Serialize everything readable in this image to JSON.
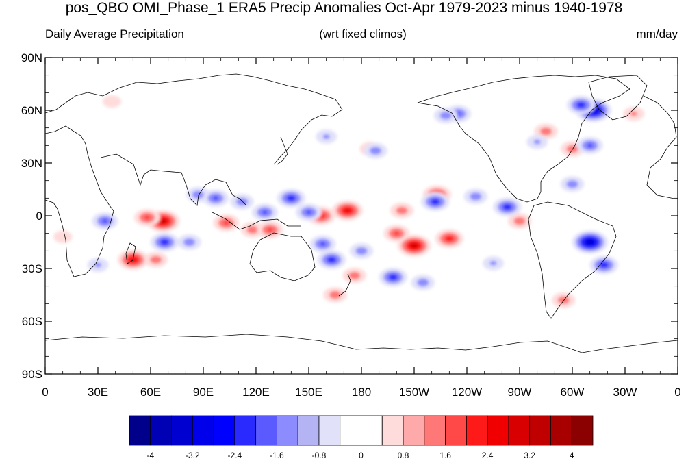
{
  "title": "pos_QBO OMI_Phase_1 ERA5 Precip Anomalies Oct-Apr 1979-2023 minus 1940-1978",
  "subtitle_left": "Daily Average Precipitation",
  "subtitle_center": "(wrt fixed climos)",
  "subtitle_right": "mm/day",
  "lat_labels": [
    "90N",
    "60N",
    "30N",
    "0",
    "30S",
    "60S",
    "90S"
  ],
  "lon_labels": [
    "0",
    "30E",
    "60E",
    "90E",
    "120E",
    "150E",
    "180",
    "150W",
    "120W",
    "90W",
    "60W",
    "30W",
    "0"
  ],
  "colorbar": {
    "colors": [
      "#00008b",
      "#0000b4",
      "#0000d0",
      "#0000ea",
      "#0000ff",
      "#2a2aff",
      "#5a5aff",
      "#8c8cff",
      "#b4b4f5",
      "#e1e1fa",
      "#ffffff",
      "#ffffff",
      "#ffdcdc",
      "#ffaaaa",
      "#ff7878",
      "#ff4848",
      "#ff1a1a",
      "#f00000",
      "#d80000",
      "#c00000",
      "#a80000",
      "#8b0000"
    ],
    "tick_labels": [
      "-4",
      "-3.2",
      "-2.4",
      "-1.6",
      "-0.8",
      "0",
      "0.8",
      "1.6",
      "2.4",
      "3.2",
      "4"
    ]
  },
  "chart_data": {
    "type": "heatmap",
    "title": "pos_QBO OMI_Phase_1 ERA5 Precip Anomalies Oct-Apr 1979-2023 minus 1940-1978",
    "units": "mm/day",
    "xlim": [
      0,
      360
    ],
    "ylim": [
      -90,
      90
    ],
    "color_range": [
      -4.4,
      4.4
    ],
    "color_interval": 0.4,
    "anomalies": [
      {
        "lon": 67,
        "lat": -3,
        "value": 3.2
      },
      {
        "lon": 58,
        "lat": -1,
        "value": 2.0
      },
      {
        "lon": 50,
        "lat": -25,
        "value": 2.8
      },
      {
        "lon": 63,
        "lat": -25,
        "value": 1.6
      },
      {
        "lon": 103,
        "lat": -4,
        "value": 2.0
      },
      {
        "lon": 118,
        "lat": -8,
        "value": 1.6
      },
      {
        "lon": 128,
        "lat": -8,
        "value": 2.0
      },
      {
        "lon": 172,
        "lat": 3,
        "value": 2.8
      },
      {
        "lon": 157,
        "lat": 0,
        "value": 2.4
      },
      {
        "lon": 210,
        "lat": -17,
        "value": 3.2
      },
      {
        "lon": 200,
        "lat": -10,
        "value": 2.0
      },
      {
        "lon": 230,
        "lat": -13,
        "value": 2.4
      },
      {
        "lon": 223,
        "lat": 12,
        "value": 2.4
      },
      {
        "lon": 203,
        "lat": 3,
        "value": 1.6
      },
      {
        "lon": 176,
        "lat": -34,
        "value": 1.6
      },
      {
        "lon": 165,
        "lat": -45,
        "value": 1.6
      },
      {
        "lon": 185,
        "lat": 38,
        "value": 1.2
      },
      {
        "lon": 285,
        "lat": 48,
        "value": 1.6
      },
      {
        "lon": 300,
        "lat": 38,
        "value": 1.6
      },
      {
        "lon": 335,
        "lat": 58,
        "value": 1.2
      },
      {
        "lon": 295,
        "lat": -48,
        "value": 1.6
      },
      {
        "lon": 270,
        "lat": -3,
        "value": 1.6
      },
      {
        "lon": 38,
        "lat": 65,
        "value": 0.8
      },
      {
        "lon": 10,
        "lat": -12,
        "value": 0.8
      },
      {
        "lon": 34,
        "lat": -3,
        "value": -2.0
      },
      {
        "lon": 68,
        "lat": -15,
        "value": -2.4
      },
      {
        "lon": 82,
        "lat": -15,
        "value": -1.6
      },
      {
        "lon": 87,
        "lat": 12,
        "value": -1.6
      },
      {
        "lon": 97,
        "lat": 10,
        "value": -2.0
      },
      {
        "lon": 112,
        "lat": 8,
        "value": -1.6
      },
      {
        "lon": 125,
        "lat": 2,
        "value": -2.0
      },
      {
        "lon": 140,
        "lat": 10,
        "value": -2.4
      },
      {
        "lon": 150,
        "lat": 2,
        "value": -2.0
      },
      {
        "lon": 158,
        "lat": -16,
        "value": -2.0
      },
      {
        "lon": 163,
        "lat": -25,
        "value": -2.4
      },
      {
        "lon": 180,
        "lat": -20,
        "value": -1.6
      },
      {
        "lon": 198,
        "lat": -35,
        "value": -2.4
      },
      {
        "lon": 215,
        "lat": -38,
        "value": -1.6
      },
      {
        "lon": 222,
        "lat": 8,
        "value": -2.4
      },
      {
        "lon": 245,
        "lat": 11,
        "value": -1.6
      },
      {
        "lon": 263,
        "lat": 5,
        "value": -2.4
      },
      {
        "lon": 235,
        "lat": 58,
        "value": -2.0
      },
      {
        "lon": 228,
        "lat": 57,
        "value": -1.6
      },
      {
        "lon": 312,
        "lat": 60,
        "value": -3.6
      },
      {
        "lon": 305,
        "lat": 63,
        "value": -2.4
      },
      {
        "lon": 310,
        "lat": 40,
        "value": -2.0
      },
      {
        "lon": 280,
        "lat": 42,
        "value": -1.2
      },
      {
        "lon": 310,
        "lat": -15,
        "value": -3.6
      },
      {
        "lon": 318,
        "lat": -28,
        "value": -2.4
      },
      {
        "lon": 255,
        "lat": -27,
        "value": -1.2
      },
      {
        "lon": 188,
        "lat": 37,
        "value": -1.6
      },
      {
        "lon": 160,
        "lat": 45,
        "value": -1.2
      },
      {
        "lon": 30,
        "lat": -28,
        "value": -1.2
      },
      {
        "lon": 300,
        "lat": 18,
        "value": -1.6
      }
    ]
  }
}
